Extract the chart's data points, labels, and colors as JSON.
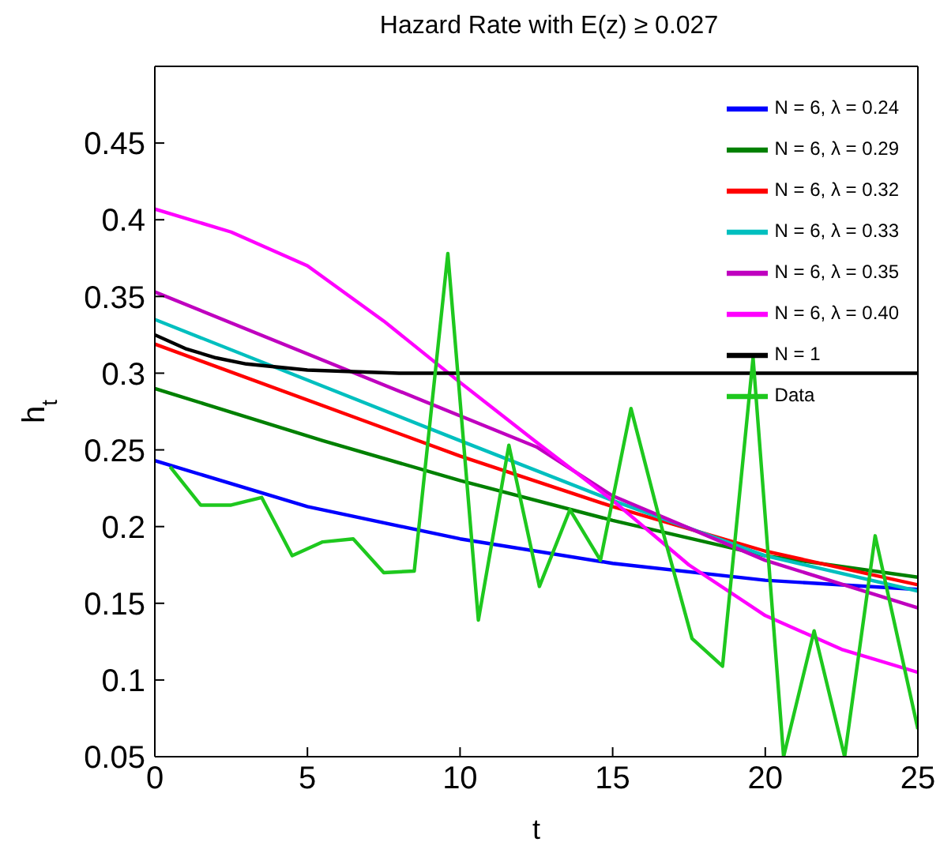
{
  "chart_data": {
    "type": "line",
    "title": "Hazard Rate with E(z) ≥ 0.027",
    "xlabel": "t",
    "ylabel": "h$_{t}$",
    "xlim": [
      0,
      25
    ],
    "xticks": [
      0,
      5,
      10,
      15,
      20,
      25
    ],
    "ylim": [
      0.05,
      0.5
    ],
    "yticks": [
      0.05,
      0.1,
      0.15,
      0.2,
      0.25,
      0.3,
      0.35,
      0.4,
      0.45
    ],
    "legend": "top right",
    "marker": "none",
    "line_style": "solid",
    "series": [
      {
        "name": "N = 6, λ = 0.24",
        "color": "#0000ff",
        "x": [
          0,
          5,
          10,
          15,
          20,
          25
        ],
        "values": [
          0.243,
          0.213,
          0.192,
          0.176,
          0.165,
          0.159
        ]
      },
      {
        "name": "N = 6, λ = 0.29",
        "color": "#008000",
        "x": [
          0,
          5.5,
          10,
          15,
          20,
          25
        ],
        "values": [
          0.29,
          0.256,
          0.23,
          0.204,
          0.181,
          0.167
        ]
      },
      {
        "name": "N = 6, λ = 0.32",
        "color": "#ff0000",
        "x": [
          0,
          10,
          15,
          20,
          25
        ],
        "values": [
          0.319,
          0.246,
          0.213,
          0.184,
          0.162
        ]
      },
      {
        "name": "N = 6, λ = 0.33",
        "color": "#00bfbf",
        "x": [
          0,
          10,
          15,
          20,
          25
        ],
        "values": [
          0.335,
          0.256,
          0.217,
          0.181,
          0.158
        ]
      },
      {
        "name": "N = 6, λ = 0.35",
        "color": "#bf00bf",
        "x": [
          0,
          12.5,
          15,
          20,
          25
        ],
        "values": [
          0.353,
          0.252,
          0.22,
          0.178,
          0.147
        ]
      },
      {
        "name": "N = 6, λ = 0.40",
        "color": "#ff00ff",
        "x": [
          0,
          2.5,
          5,
          7.5,
          10,
          12.5,
          15,
          17.5,
          20,
          22.5,
          25
        ],
        "values": [
          0.407,
          0.392,
          0.37,
          0.334,
          0.294,
          0.255,
          0.217,
          0.175,
          0.142,
          0.12,
          0.105
        ]
      },
      {
        "name": "N = 1",
        "color": "#000000",
        "x": [
          0,
          1,
          2,
          3,
          5,
          8,
          12,
          25
        ],
        "values": [
          0.325,
          0.316,
          0.31,
          0.306,
          0.302,
          0.3,
          0.3,
          0.3
        ]
      },
      {
        "name": "Data",
        "color": "#1ec81e",
        "x": [
          0.5,
          1.5,
          2.5,
          3.5,
          4.5,
          5.5,
          6.5,
          7.5,
          8.5,
          9.6,
          10.6,
          11.6,
          12.6,
          13.6,
          14.6,
          15.6,
          16.6,
          17.6,
          18.6,
          19.6,
          20.6,
          21.6,
          22.6,
          23.6,
          25
        ],
        "values": [
          0.239,
          0.214,
          0.214,
          0.219,
          0.181,
          0.19,
          0.192,
          0.17,
          0.171,
          0.378,
          0.139,
          0.253,
          0.161,
          0.211,
          0.178,
          0.277,
          0.2,
          0.127,
          0.109,
          0.31,
          0.05,
          0.132,
          0.05,
          0.194,
          0.068
        ]
      }
    ]
  }
}
